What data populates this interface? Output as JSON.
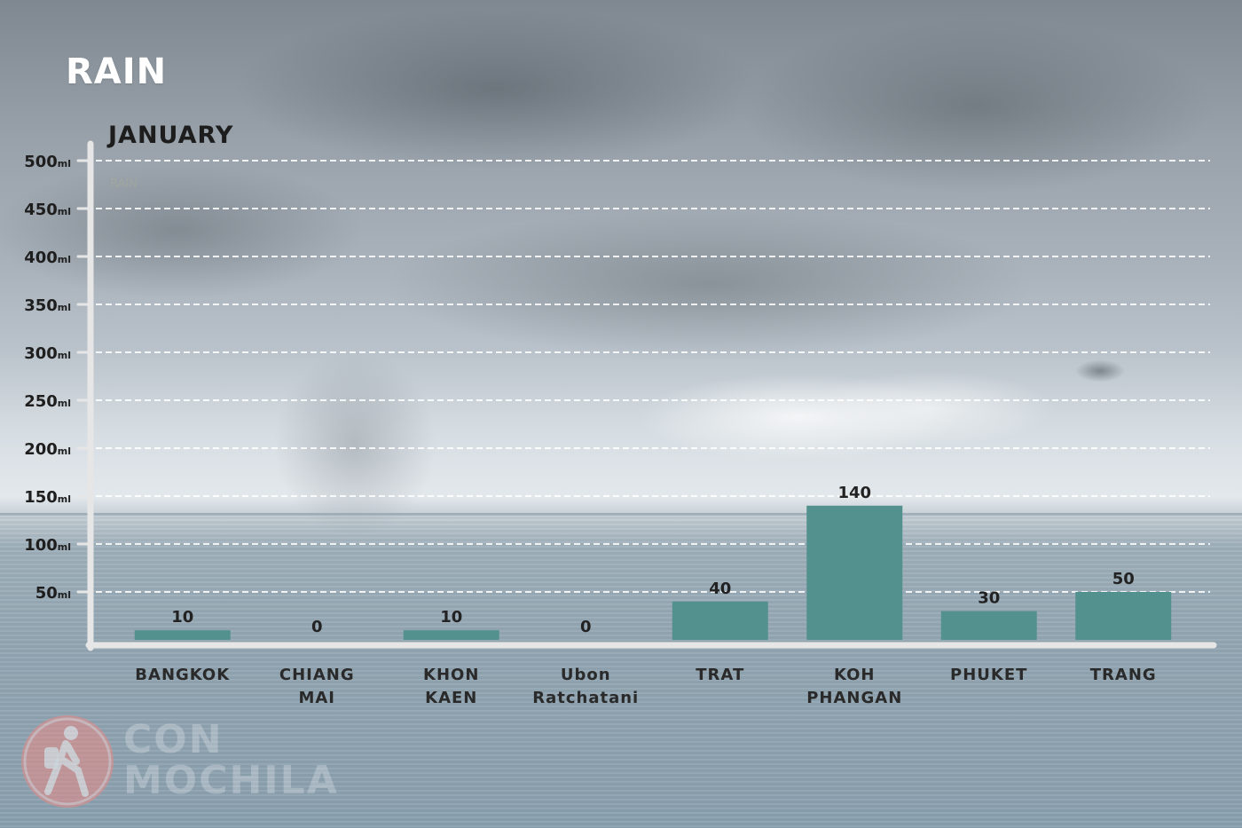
{
  "header": {
    "title": "RAIN"
  },
  "chart_data": {
    "type": "bar",
    "title": "JANUARY",
    "series_name": "RAIN",
    "categories": [
      [
        "BANGKOK"
      ],
      [
        "CHIANG",
        "MAI"
      ],
      [
        "KHON",
        "KAEN"
      ],
      [
        "Ubon",
        "Ratchatani"
      ],
      [
        "TRAT"
      ],
      [
        "KOH",
        "PHANGAN"
      ],
      [
        "PHUKET"
      ],
      [
        "TRANG"
      ]
    ],
    "values": [
      10,
      0,
      10,
      0,
      40,
      140,
      30,
      50
    ],
    "yticks": [
      50,
      100,
      150,
      200,
      250,
      300,
      350,
      400,
      450,
      500
    ],
    "y_unit": "ml",
    "ylim": [
      0,
      500
    ],
    "grid": true,
    "bar_color": "#53918f",
    "axis_color": "#e6e6e6"
  },
  "logo": {
    "line1": "CON",
    "line2": "MOCHILA",
    "badge_color": "#e88b87"
  }
}
